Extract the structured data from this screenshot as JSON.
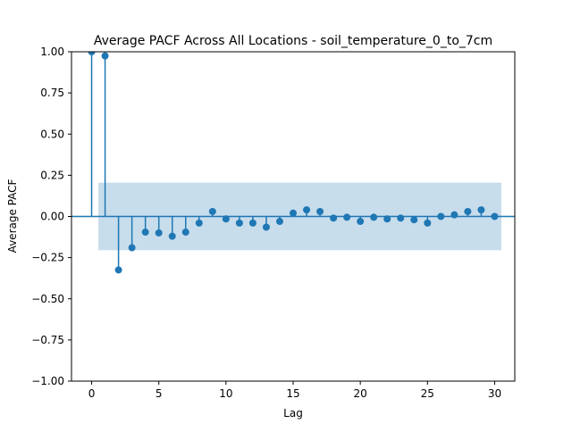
{
  "chart_data": {
    "type": "scatter",
    "title": "Average PACF Across All Locations - soil_temperature_0_to_7cm",
    "xlabel": "Lag",
    "ylabel": "Average PACF",
    "xlim": [
      -1.5,
      31.5
    ],
    "ylim": [
      -1.0,
      1.0
    ],
    "x_ticks": [
      0,
      5,
      10,
      15,
      20,
      25,
      30
    ],
    "x_tick_labels": [
      "0",
      "5",
      "10",
      "15",
      "20",
      "25",
      "30"
    ],
    "y_ticks": [
      1.0,
      0.75,
      0.5,
      0.25,
      0.0,
      -0.25,
      -0.5,
      -0.75,
      -1.0
    ],
    "y_tick_labels": [
      "1.00",
      "0.75",
      "0.50",
      "0.25",
      "0.00",
      "−0.25",
      "−0.50",
      "−0.75",
      "−1.00"
    ],
    "confidence_band": {
      "x_range": [
        0.5,
        30.5
      ],
      "upper": 0.205,
      "lower": -0.205
    },
    "grid": false,
    "series": [
      {
        "lags": [
          0,
          1,
          2,
          3,
          4,
          5,
          6,
          7,
          8,
          9,
          10,
          11,
          12,
          13,
          14,
          15,
          16,
          17,
          18,
          19,
          20,
          21,
          22,
          23,
          24,
          25,
          26,
          27,
          28,
          29,
          30
        ],
        "values": [
          1.0,
          0.975,
          -0.325,
          -0.19,
          -0.095,
          -0.1,
          -0.12,
          -0.095,
          -0.04,
          0.03,
          -0.015,
          -0.04,
          -0.04,
          -0.065,
          -0.03,
          0.02,
          0.04,
          0.03,
          -0.01,
          -0.005,
          -0.03,
          -0.005,
          -0.015,
          -0.01,
          -0.02,
          -0.04,
          0.0,
          0.01,
          0.03,
          0.04,
          0.0
        ]
      }
    ],
    "colors": {
      "marker": "#1f77b4",
      "band": "#1f77b4",
      "axis": "#000000"
    }
  }
}
